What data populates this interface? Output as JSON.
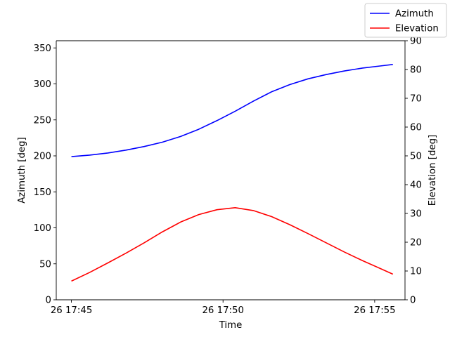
{
  "chart_data": {
    "type": "line",
    "xlabel": "Time",
    "ylabel_left": "Azimuth [deg]",
    "ylabel_right": "Elevation [deg]",
    "x_ticks": [
      "26 17:45",
      "26 17:50",
      "26 17:55"
    ],
    "x_tick_minutes": [
      0,
      5,
      10
    ],
    "xlim_minutes": [
      -0.5,
      11
    ],
    "y_left_lim": [
      0,
      360
    ],
    "y_left_ticks": [
      0,
      50,
      100,
      150,
      200,
      250,
      300,
      350
    ],
    "y_right_lim": [
      0,
      90
    ],
    "y_right_ticks": [
      0,
      10,
      20,
      30,
      40,
      50,
      60,
      70,
      80,
      90
    ],
    "grid": false,
    "legend_position": "top-right",
    "series": [
      {
        "name": "Azimuth",
        "axis": "left",
        "color": "#0000ff",
        "x_minutes": [
          0,
          0.6,
          1.2,
          1.8,
          2.4,
          3.0,
          3.6,
          4.2,
          4.8,
          5.4,
          6.0,
          6.6,
          7.2,
          7.8,
          8.4,
          9.0,
          9.6,
          10.2,
          10.6
        ],
        "values": [
          199,
          201,
          204,
          208,
          213,
          219,
          227,
          237,
          249,
          262,
          276,
          289,
          299,
          307,
          313,
          318,
          322,
          325,
          327
        ]
      },
      {
        "name": "Elevation",
        "axis": "right",
        "color": "#ff0000",
        "x_minutes": [
          0,
          0.6,
          1.2,
          1.8,
          2.4,
          3.0,
          3.6,
          4.2,
          4.8,
          5.4,
          6.0,
          6.6,
          7.2,
          7.8,
          8.4,
          9.0,
          9.6,
          10.2,
          10.6
        ],
        "values": [
          6.5,
          9.5,
          12.8,
          16.2,
          19.8,
          23.6,
          27.0,
          29.6,
          31.3,
          32.0,
          31.0,
          28.9,
          26.1,
          23.0,
          19.8,
          16.6,
          13.6,
          10.8,
          8.9
        ]
      }
    ]
  }
}
